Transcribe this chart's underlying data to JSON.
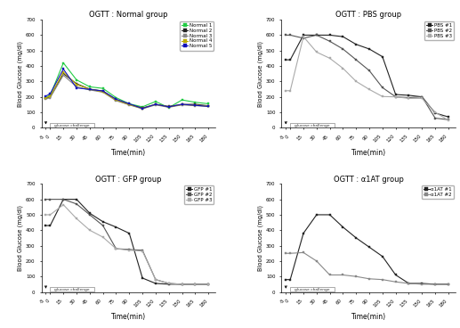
{
  "time_points": [
    -5,
    0,
    15,
    30,
    45,
    60,
    75,
    90,
    105,
    120,
    135,
    150,
    165,
    180
  ],
  "normal_group": {
    "title": "OGTT : Normal group",
    "ylim": [
      0,
      700
    ],
    "yticks": [
      0,
      100,
      200,
      300,
      400,
      500,
      600,
      700
    ],
    "series": [
      {
        "label": "Normal 1",
        "color": "#22cc44",
        "data": [
          195,
          210,
          420,
          310,
          265,
          255,
          195,
          155,
          135,
          170,
          130,
          180,
          165,
          155
        ]
      },
      {
        "label": "Normal 2",
        "color": "#222222",
        "data": [
          190,
          200,
          350,
          285,
          250,
          238,
          180,
          150,
          128,
          150,
          138,
          150,
          152,
          142
        ]
      },
      {
        "label": "Normal 3",
        "color": "#888888",
        "data": [
          185,
          195,
          340,
          265,
          245,
          230,
          175,
          148,
          122,
          148,
          132,
          148,
          143,
          138
        ]
      },
      {
        "label": "Normal 4",
        "color": "#bbaa00",
        "data": [
          192,
          205,
          360,
          280,
          250,
          232,
          180,
          150,
          125,
          152,
          135,
          150,
          146,
          140
        ]
      },
      {
        "label": "Normal 5",
        "color": "#1111bb",
        "data": [
          205,
          220,
          380,
          258,
          248,
          238,
          185,
          155,
          125,
          152,
          135,
          152,
          145,
          138
        ]
      }
    ]
  },
  "pbs_group": {
    "title": "OGTT : PBS group",
    "ylim": [
      0,
      700
    ],
    "yticks": [
      0,
      100,
      200,
      300,
      400,
      500,
      600,
      700
    ],
    "series": [
      {
        "label": "PBS #1",
        "color": "#222222",
        "data": [
          440,
          440,
          600,
          600,
          600,
          590,
          540,
          510,
          460,
          215,
          210,
          200,
          95,
          70
        ]
      },
      {
        "label": "PBS #2",
        "color": "#555555",
        "data": [
          600,
          600,
          580,
          600,
          560,
          510,
          440,
          370,
          260,
          200,
          195,
          200,
          62,
          52
        ]
      },
      {
        "label": "PBS #3",
        "color": "#aaaaaa",
        "data": [
          240,
          240,
          590,
          490,
          450,
          385,
          300,
          248,
          202,
          200,
          190,
          190,
          100,
          48
        ]
      }
    ]
  },
  "gfp_group": {
    "title": "OGTT : GFP group",
    "ylim": [
      0,
      700
    ],
    "yticks": [
      0,
      100,
      200,
      300,
      400,
      500,
      600,
      700
    ],
    "series": [
      {
        "label": "GFP #1",
        "color": "#222222",
        "data": [
          430,
          430,
          600,
          600,
          510,
          455,
          420,
          380,
          90,
          55,
          50,
          50,
          50,
          50
        ]
      },
      {
        "label": "GFP #2",
        "color": "#555555",
        "data": [
          600,
          600,
          600,
          570,
          500,
          430,
          280,
          275,
          270,
          80,
          55,
          50,
          50,
          50
        ]
      },
      {
        "label": "GFP #3",
        "color": "#aaaaaa",
        "data": [
          500,
          500,
          565,
          475,
          400,
          355,
          280,
          270,
          265,
          80,
          55,
          50,
          50,
          50
        ]
      }
    ]
  },
  "a1at_group": {
    "title": "OGTT : α1AT group",
    "ylim": [
      0,
      700
    ],
    "yticks": [
      0,
      100,
      200,
      300,
      400,
      500,
      600,
      700
    ],
    "series": [
      {
        "label": "α1AT #1",
        "color": "#222222",
        "data": [
          80,
          80,
          380,
          500,
          500,
          420,
          350,
          290,
          230,
          110,
          55,
          55,
          50,
          50
        ]
      },
      {
        "label": "α1AT #2",
        "color": "#888888",
        "data": [
          250,
          250,
          255,
          200,
          110,
          110,
          100,
          85,
          80,
          65,
          55,
          50,
          50,
          50
        ]
      }
    ]
  },
  "xlabel": "Time(min)",
  "ylabel": "Blood Glucose (mg/dl)",
  "xtick_labels": [
    "-5",
    "0",
    "15",
    "30",
    "45",
    "60",
    "75",
    "90",
    "105",
    "120",
    "135",
    "150",
    "165",
    "180"
  ],
  "glucose_challenge_text": "glucose challenge"
}
